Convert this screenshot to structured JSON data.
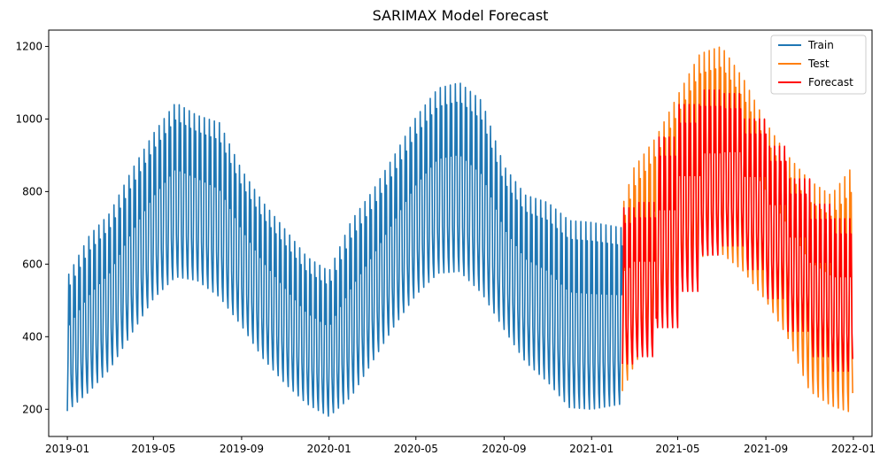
{
  "chart_data": {
    "type": "line",
    "title": "SARIMAX Model Forecast",
    "xlabel": "",
    "ylabel": "",
    "xlim": [
      "2018-12-06",
      "2022-01-27"
    ],
    "ylim": [
      125,
      1245
    ],
    "x_ticks": [
      "2019-01",
      "2019-05",
      "2019-09",
      "2020-01",
      "2020-05",
      "2020-09",
      "2021-01",
      "2021-05",
      "2021-09",
      "2022-01"
    ],
    "y_ticks": [
      200,
      400,
      600,
      800,
      1000,
      1200
    ],
    "grid": false,
    "legend_position": "top-right",
    "weekly_cycle": true,
    "series": [
      {
        "name": "Train",
        "color": "#1f77b4",
        "x_start": "2019-01-01",
        "x_end": "2021-02-13",
        "points": [
          [
            "2019-01-01",
            195,
            565
          ],
          [
            "2019-02-01",
            250,
            680
          ],
          [
            "2019-03-01",
            310,
            740
          ],
          [
            "2019-04-01",
            410,
            860
          ],
          [
            "2019-05-01",
            505,
            960
          ],
          [
            "2019-06-01",
            565,
            1045
          ],
          [
            "2019-07-01",
            555,
            1010
          ],
          [
            "2019-08-01",
            510,
            990
          ],
          [
            "2019-09-01",
            430,
            860
          ],
          [
            "2019-10-01",
            340,
            770
          ],
          [
            "2019-11-01",
            270,
            695
          ],
          [
            "2019-12-01",
            215,
            620
          ],
          [
            "2020-01-01",
            180,
            580
          ],
          [
            "2020-02-01",
            235,
            720
          ],
          [
            "2020-03-01",
            330,
            800
          ],
          [
            "2020-04-01",
            430,
            900
          ],
          [
            "2020-05-01",
            515,
            1005
          ],
          [
            "2020-06-01",
            575,
            1085
          ],
          [
            "2020-07-01",
            580,
            1100
          ],
          [
            "2020-08-01",
            520,
            1050
          ],
          [
            "2020-09-01",
            420,
            870
          ],
          [
            "2020-10-01",
            330,
            790
          ],
          [
            "2020-11-01",
            275,
            770
          ],
          [
            "2020-12-01",
            205,
            720
          ],
          [
            "2021-01-01",
            200,
            715
          ],
          [
            "2021-02-13",
            215,
            700
          ]
        ]
      },
      {
        "name": "Test",
        "color": "#ff7f0e",
        "x_start": "2021-02-13",
        "x_end": "2021-12-31",
        "points": [
          [
            "2021-02-13",
            250,
            760
          ],
          [
            "2021-03-01",
            320,
            865
          ],
          [
            "2021-04-01",
            430,
            950
          ],
          [
            "2021-05-01",
            540,
            1065
          ],
          [
            "2021-06-01",
            620,
            1180
          ],
          [
            "2021-07-01",
            630,
            1200
          ],
          [
            "2021-08-01",
            580,
            1110
          ],
          [
            "2021-09-01",
            500,
            990
          ],
          [
            "2021-10-01",
            400,
            900
          ],
          [
            "2021-11-01",
            250,
            830
          ],
          [
            "2021-12-01",
            210,
            790
          ],
          [
            "2021-12-31",
            190,
            870
          ]
        ]
      },
      {
        "name": "Forecast",
        "color": "#ff0000",
        "x_start": "2021-02-13",
        "x_end": "2021-12-31",
        "monthly_segments": [
          [
            "2021-02-13",
            "2021-03-01",
            325,
            755
          ],
          [
            "2021-03-01",
            "2021-04-01",
            345,
            770
          ],
          [
            "2021-04-01",
            "2021-05-01",
            425,
            950
          ],
          [
            "2021-05-01",
            "2021-06-01",
            525,
            1040
          ],
          [
            "2021-06-01",
            "2021-07-01",
            625,
            1080
          ],
          [
            "2021-07-01",
            "2021-08-01",
            650,
            1070
          ],
          [
            "2021-08-01",
            "2021-09-01",
            585,
            1000
          ],
          [
            "2021-09-01",
            "2021-10-01",
            505,
            925
          ],
          [
            "2021-10-01",
            "2021-11-01",
            415,
            835
          ],
          [
            "2021-11-01",
            "2021-12-01",
            345,
            765
          ],
          [
            "2021-12-01",
            "2021-12-31",
            305,
            725
          ]
        ]
      }
    ]
  }
}
